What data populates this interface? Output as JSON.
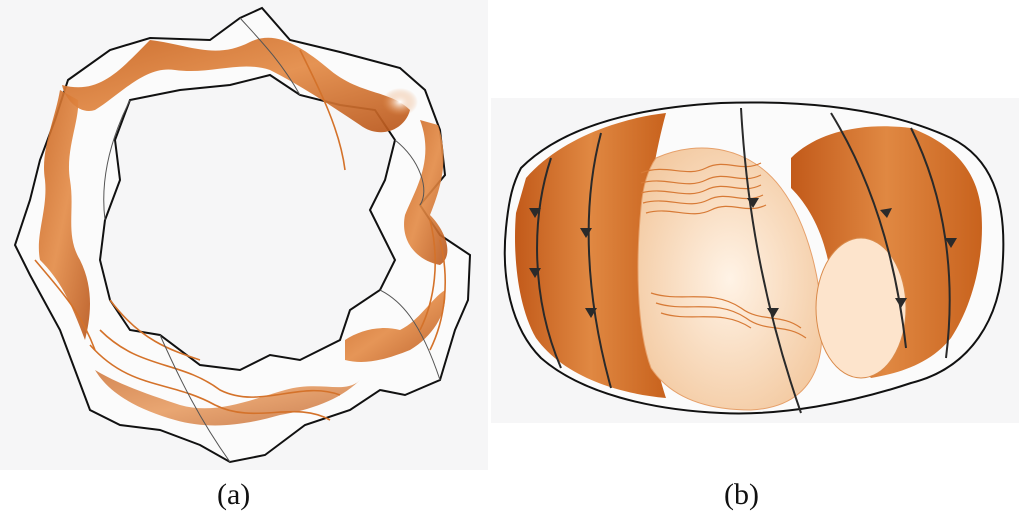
{
  "figure": {
    "panels": [
      {
        "id": "a",
        "caption": "(a)"
      },
      {
        "id": "b",
        "caption": "(b)"
      }
    ]
  },
  "colors": {
    "background": "#f6f6f7",
    "surface_orange": "#d4722a",
    "surface_orange_light": "#f0c29a",
    "surface_pale": "#fbe6d2",
    "outline": "#111111",
    "field_line": "#2a2a2a"
  }
}
